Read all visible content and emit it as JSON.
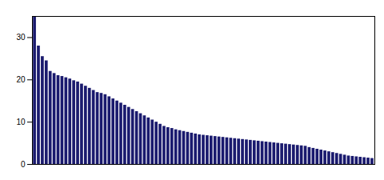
{
  "chart_data": {
    "type": "bar",
    "categories": [
      null,
      null,
      null,
      null,
      null,
      null,
      null,
      null,
      null,
      null,
      null,
      null,
      null,
      null,
      null,
      null,
      null,
      null,
      null,
      null,
      null,
      null,
      null,
      null,
      null,
      null,
      null,
      null,
      null,
      null,
      null,
      null,
      null,
      null,
      null,
      null,
      null,
      null,
      null,
      null,
      null,
      null,
      null,
      null,
      null,
      null,
      null,
      null,
      null,
      null,
      null,
      null,
      null,
      null,
      null,
      null,
      null,
      null,
      null,
      null,
      null,
      null,
      null,
      null,
      null,
      null,
      null,
      null,
      null,
      null,
      null,
      null,
      null,
      null,
      null,
      null,
      null,
      null,
      null,
      null,
      null,
      null,
      null,
      null,
      null,
      null,
      null
    ],
    "values": [
      35.0,
      28.0,
      25.5,
      24.5,
      22.0,
      21.5,
      21.0,
      20.8,
      20.5,
      20.2,
      19.8,
      19.5,
      19.0,
      18.5,
      18.0,
      17.5,
      17.0,
      16.8,
      16.5,
      16.0,
      15.5,
      15.0,
      14.5,
      14.0,
      13.5,
      13.0,
      12.5,
      12.0,
      11.5,
      11.0,
      10.5,
      10.0,
      9.5,
      9.0,
      8.7,
      8.5,
      8.2,
      8.0,
      7.8,
      7.6,
      7.4,
      7.2,
      7.0,
      6.9,
      6.8,
      6.7,
      6.6,
      6.5,
      6.4,
      6.3,
      6.2,
      6.1,
      6.0,
      5.9,
      5.8,
      5.7,
      5.6,
      5.5,
      5.4,
      5.3,
      5.2,
      5.1,
      5.0,
      4.9,
      4.8,
      4.7,
      4.6,
      4.5,
      4.4,
      4.3,
      4.0,
      3.8,
      3.6,
      3.4,
      3.2,
      3.0,
      2.8,
      2.6,
      2.4,
      2.2,
      2.0,
      1.9,
      1.8,
      1.7,
      1.6,
      1.5,
      1.4
    ],
    "color": "#1a1a6e",
    "ylim": [
      0,
      35
    ],
    "yticks": [
      0,
      10,
      20,
      30
    ],
    "tick_labels": "y"
  }
}
